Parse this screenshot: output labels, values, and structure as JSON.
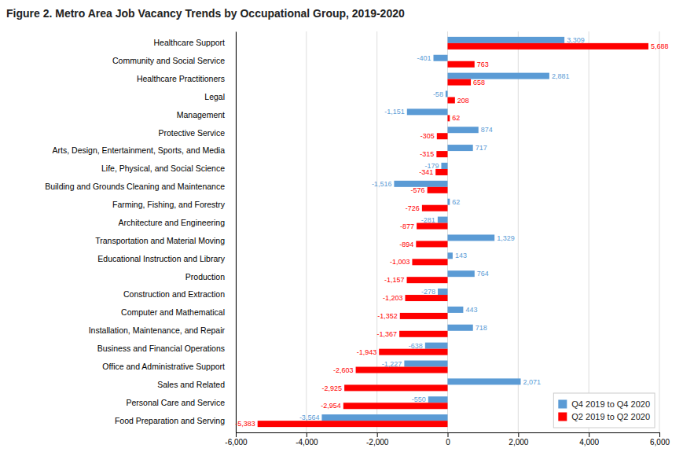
{
  "chart_data": {
    "type": "bar",
    "orientation": "horizontal",
    "title": "Figure 2. Metro Area Job Vacancy Trends by Occupational Group, 2019-2020",
    "categories": [
      "Healthcare Support",
      "Community and Social Service",
      "Healthcare Practitioners",
      "Legal",
      "Management",
      "Protective Service",
      "Arts, Design, Entertainment, Sports, and Media",
      "Life, Physical, and Social Science",
      "Building and Grounds Cleaning and Maintenance",
      "Farming, Fishing, and Forestry",
      "Architecture and Engineering",
      "Transportation and Material Moving",
      "Educational Instruction and Library",
      "Production",
      "Construction and Extraction",
      "Computer and Mathematical",
      "Installation, Maintenance, and Repair",
      "Business and Financial Operations",
      "Office and Administrative Support",
      "Sales and Related",
      "Personal Care and Service",
      "Food Preparation and Serving"
    ],
    "series": [
      {
        "name": "Q4 2019 to Q4 2020",
        "color": "#5B9BD5",
        "values": [
          3309,
          -401,
          2881,
          -58,
          -1151,
          874,
          717,
          -179,
          -1516,
          62,
          -281,
          1329,
          143,
          764,
          -278,
          443,
          718,
          -638,
          -1227,
          2071,
          -550,
          -3564
        ],
        "value_labels": [
          "3,309",
          "-401",
          "2,881",
          "-58",
          "-1,151",
          "874",
          "717",
          "-179",
          "-1,516",
          "62",
          "-281",
          "1,329",
          "143",
          "764",
          "-278",
          "443",
          "718",
          "-638",
          "-1,227",
          "2,071",
          "-550",
          "-3,564"
        ]
      },
      {
        "name": "Q2 2019 to Q2 2020",
        "color": "#FF0000",
        "values": [
          5688,
          763,
          658,
          208,
          62,
          -305,
          -315,
          -341,
          -576,
          -726,
          -877,
          -894,
          -1003,
          -1157,
          -1203,
          -1352,
          -1367,
          -1943,
          -2603,
          -2925,
          -2954,
          -5383
        ],
        "value_labels": [
          "5,688",
          "763",
          "658",
          "208",
          "62",
          "-305",
          "-315",
          "-341",
          "-576",
          "-726",
          "-877",
          "-894",
          "-1,003",
          "-1,157",
          "-1,203",
          "-1,352",
          "-1,367",
          "-1,943",
          "-2,603",
          "-2,925",
          "-2,954",
          "-5,383"
        ]
      }
    ],
    "xlim": [
      -6000,
      6000
    ],
    "xticks": [
      {
        "value": -6000,
        "label": "-6,000"
      },
      {
        "value": -4000,
        "label": "-4,000"
      },
      {
        "value": -2000,
        "label": "-2,000"
      },
      0,
      {
        "value": 2000,
        "label": "2,000"
      },
      {
        "value": 4000,
        "label": "4,000"
      },
      {
        "value": 6000,
        "label": "6,000"
      }
    ],
    "grid": true,
    "legend": "lower right",
    "data_labels": true
  }
}
